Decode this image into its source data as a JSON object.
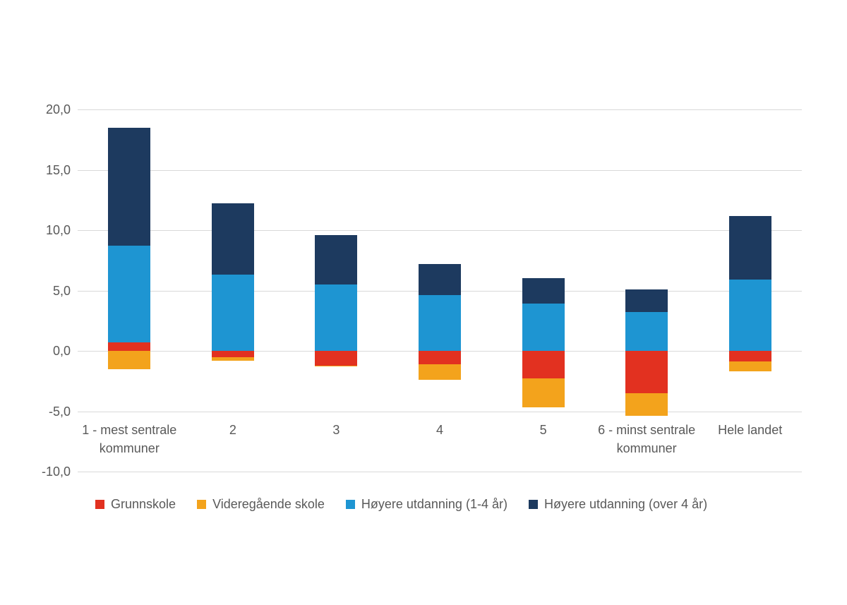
{
  "chart_data": {
    "type": "bar",
    "stacked": true,
    "title": "",
    "xlabel": "",
    "ylabel": "",
    "categories": [
      "1 - mest sentrale kommuner",
      "2",
      "3",
      "4",
      "5",
      "6 - minst sentrale kommuner",
      "Hele landet"
    ],
    "series": [
      {
        "name": "Grunnskole",
        "color": "#e23120",
        "values": [
          0.7,
          -0.5,
          -1.2,
          -1.1,
          -2.3,
          -3.5,
          -0.9
        ]
      },
      {
        "name": "Videregående skole",
        "color": "#f3a31c",
        "values": [
          -1.5,
          -0.3,
          -0.1,
          -1.3,
          -2.4,
          -1.9,
          -0.8
        ]
      },
      {
        "name": "Høyere utdanning (1-4 år)",
        "color": "#1e95d2",
        "values": [
          8.0,
          6.3,
          5.5,
          4.6,
          3.9,
          3.2,
          5.9
        ]
      },
      {
        "name": "Høyere utdanning (over 4 år)",
        "color": "#1d3a5f",
        "values": [
          9.8,
          5.9,
          4.1,
          2.6,
          2.1,
          1.9,
          5.3
        ]
      }
    ],
    "ylim": [
      -10,
      20
    ],
    "ytick_step": 5,
    "ytick_labels": [
      "20,0",
      "15,0",
      "10,0",
      "5,0",
      "0,0",
      "-5,0",
      "-10,0"
    ],
    "grid": true,
    "legend_position": "bottom"
  },
  "colors": {
    "background": "#ffffff",
    "gridline": "#d9d9d9",
    "text": "#595959"
  }
}
